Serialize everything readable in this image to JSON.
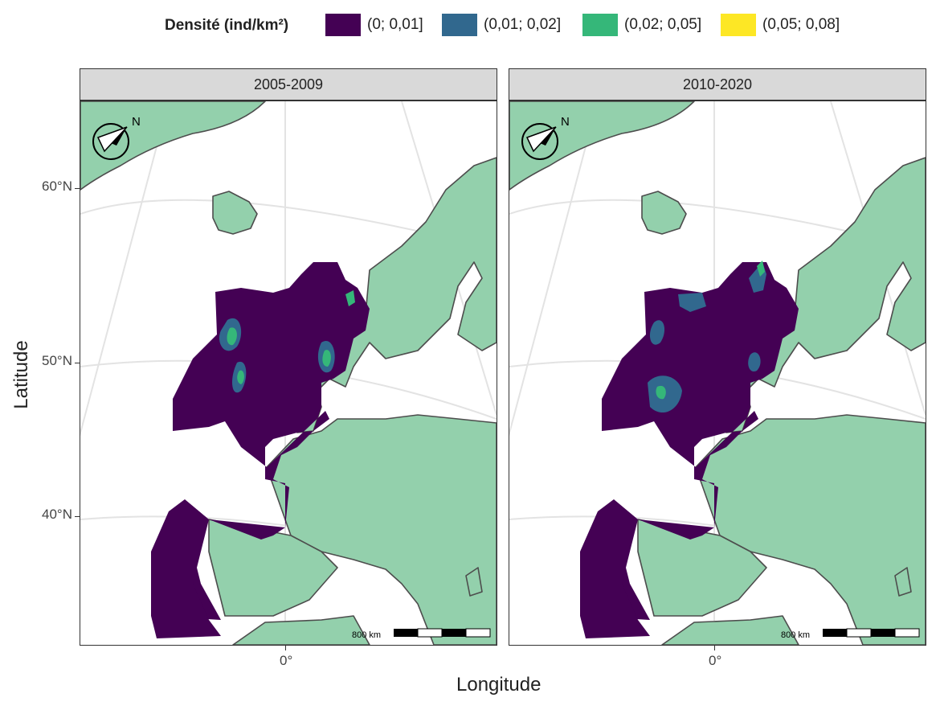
{
  "legend": {
    "title": "Densité (ind/km²)",
    "items": [
      {
        "label": "(0; 0,01]",
        "color": "#440154"
      },
      {
        "label": "(0,01; 0,02]",
        "color": "#31688e"
      },
      {
        "label": "(0,02; 0,05]",
        "color": "#35b779"
      },
      {
        "label": "(0,05; 0,08]",
        "color": "#fde725"
      }
    ]
  },
  "panels": [
    {
      "title": "2005-2009"
    },
    {
      "title": "2010-2020"
    }
  ],
  "axes": {
    "xlabel": "Longitude",
    "ylabel": "Latitude",
    "yticks": [
      "60°N",
      "50°N",
      "40°N"
    ],
    "xtick": "0°"
  },
  "north_arrow_label": "N",
  "scale_bar_label": "800 km",
  "colors": {
    "land": "#93d0ac",
    "border": "#4d4d4d",
    "sea": "#ffffff",
    "grid": "#e3e3e3"
  }
}
